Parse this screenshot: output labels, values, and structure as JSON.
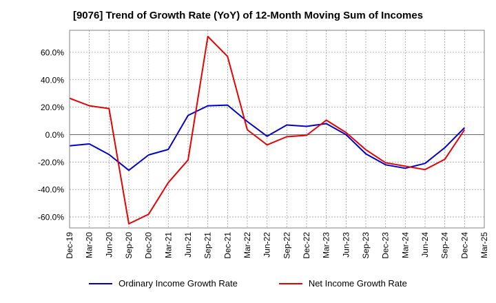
{
  "chart_data": {
    "type": "line",
    "title": "[9076]  Trend of Growth Rate (YoY) of 12-Month Moving Sum of Incomes",
    "xlabel": "",
    "ylabel": "",
    "x": [
      "Dec-19",
      "Mar-20",
      "Jun-20",
      "Sep-20",
      "Dec-20",
      "Mar-21",
      "Jun-21",
      "Sep-21",
      "Dec-21",
      "Mar-22",
      "Jun-22",
      "Sep-22",
      "Dec-22",
      "Mar-23",
      "Jun-23",
      "Sep-23",
      "Dec-23",
      "Mar-24",
      "Jun-24",
      "Sep-24",
      "Dec-24",
      "Mar-25"
    ],
    "yticks": [
      -60,
      -40,
      -20,
      0,
      20,
      40,
      60
    ],
    "ytick_labels": [
      "-60.0%",
      "-40.0%",
      "-20.0%",
      "0.0%",
      "20.0%",
      "40.0%",
      "60.0%"
    ],
    "ylim": [
      -68,
      76
    ],
    "grid": true,
    "legend_position": "bottom",
    "series": [
      {
        "name": "Ordinary Income Growth Rate",
        "color": "#0000cc",
        "points": [
          [
            "Dec-19",
            -8.2
          ],
          [
            "Mar-20",
            -6.8
          ],
          [
            "Jun-20",
            -14.5
          ],
          [
            "Sep-20",
            -26.0
          ],
          [
            "Dec-20",
            -14.8
          ],
          [
            "Mar-21",
            -10.8
          ],
          [
            "Jun-21",
            14.0
          ],
          [
            "Sep-21",
            21.0
          ],
          [
            "Dec-21",
            21.5
          ],
          [
            "Mar-22",
            9.5
          ],
          [
            "Jun-22",
            -1.2
          ],
          [
            "Sep-22",
            7.0
          ],
          [
            "Dec-22",
            6.0
          ],
          [
            "Mar-23",
            8.0
          ],
          [
            "Jun-23",
            0.0
          ],
          [
            "Sep-23",
            -14.0
          ],
          [
            "Dec-23",
            -22.0
          ],
          [
            "Mar-24",
            -24.5
          ],
          [
            "Jun-24",
            -21.0
          ],
          [
            "Sep-24",
            -9.5
          ],
          [
            "Dec-24",
            5.0
          ]
        ]
      },
      {
        "name": "Net Income Growth Rate",
        "color": "#e60000",
        "points": [
          [
            "Dec-19",
            26.5
          ],
          [
            "Mar-20",
            21.0
          ],
          [
            "Jun-20",
            19.0
          ],
          [
            "Sep-20",
            -65.0
          ],
          [
            "Dec-20",
            -58.0
          ],
          [
            "Mar-21",
            -35.0
          ],
          [
            "Jun-21",
            -18.5
          ],
          [
            "Sep-21",
            71.5
          ],
          [
            "Dec-21",
            57.0
          ],
          [
            "Mar-22",
            3.5
          ],
          [
            "Jun-22",
            -7.5
          ],
          [
            "Sep-22",
            -1.5
          ],
          [
            "Dec-22",
            -0.5
          ],
          [
            "Mar-23",
            10.5
          ],
          [
            "Jun-23",
            1.5
          ],
          [
            "Sep-23",
            -11.0
          ],
          [
            "Dec-23",
            -20.5
          ],
          [
            "Mar-24",
            -23.0
          ],
          [
            "Jun-24",
            -25.5
          ],
          [
            "Sep-24",
            -18.0
          ],
          [
            "Dec-24",
            3.5
          ]
        ]
      }
    ]
  }
}
